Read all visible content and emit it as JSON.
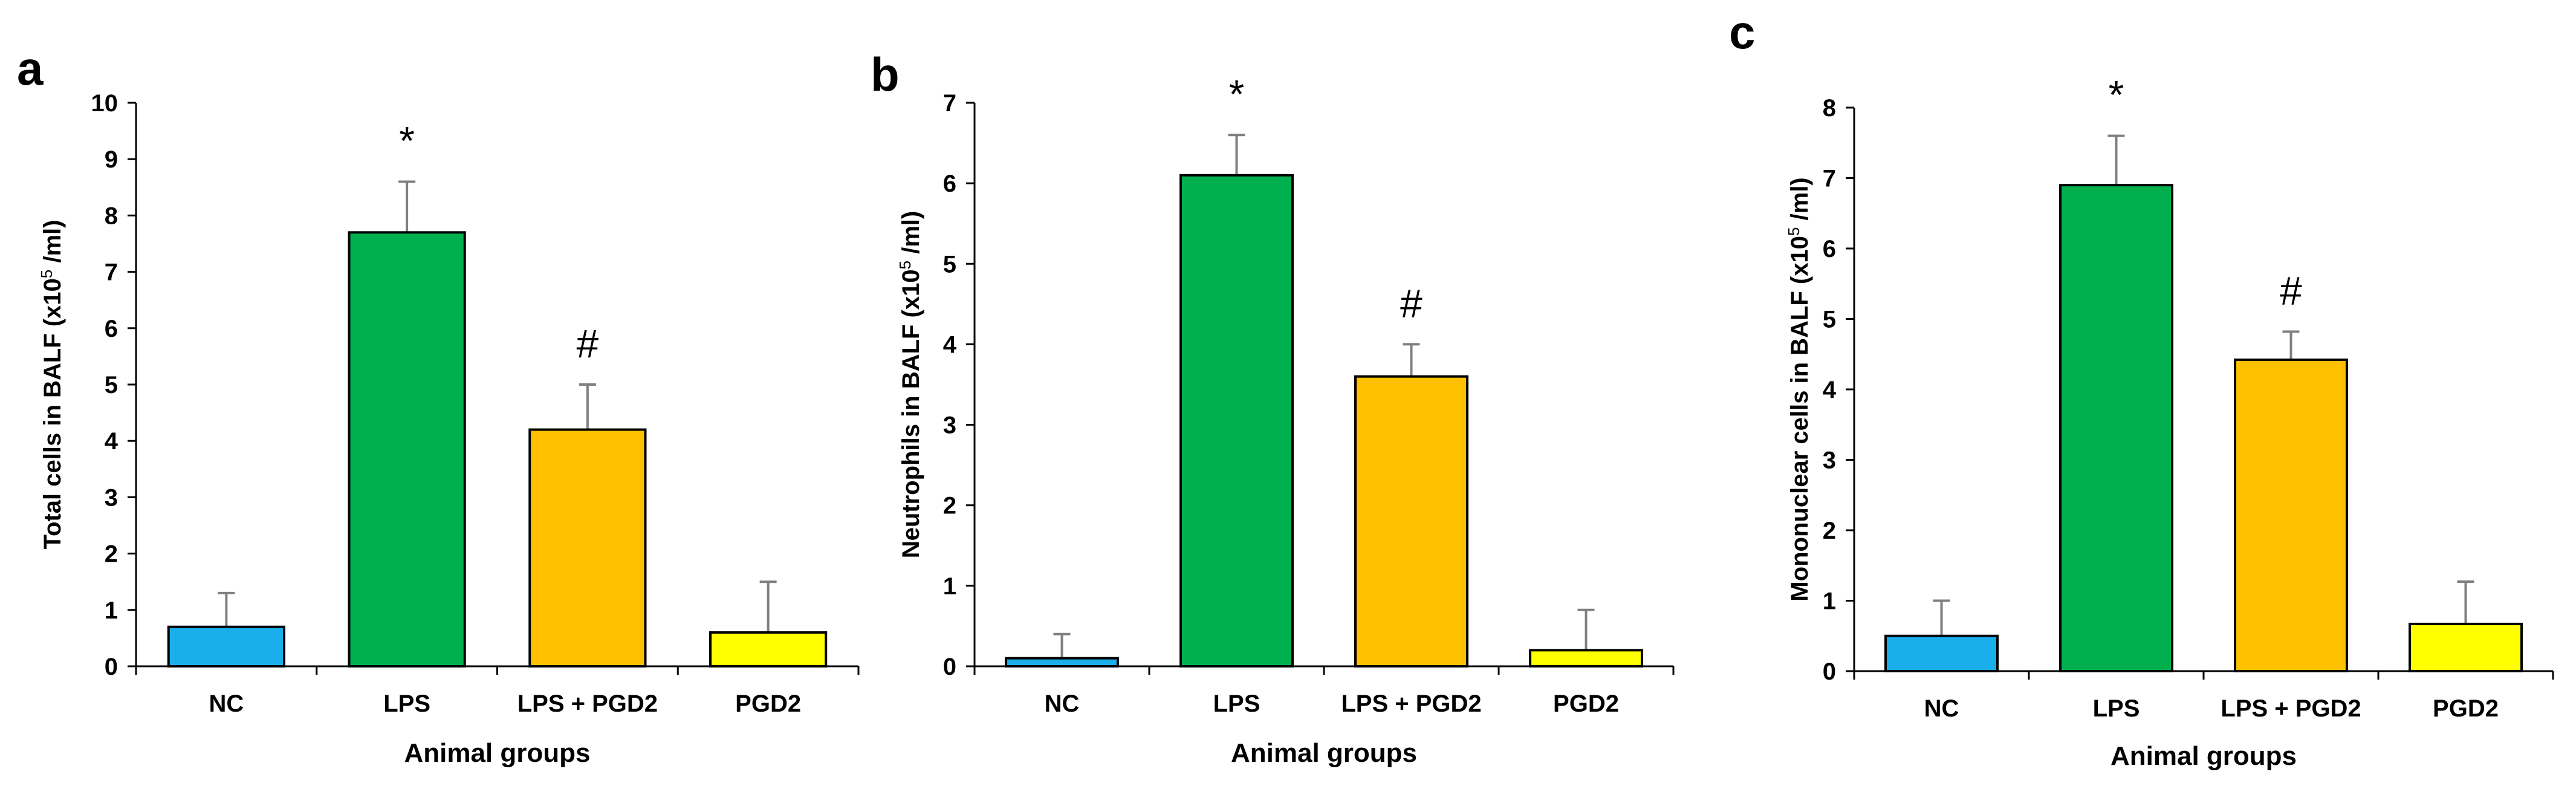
{
  "chart_data": [
    {
      "type": "bar",
      "panel": "a",
      "categories": [
        "NC",
        "LPS",
        "LPS + PGD2",
        "PGD2"
      ],
      "values": [
        0.7,
        7.7,
        4.2,
        0.6
      ],
      "errors": [
        0.6,
        0.9,
        0.8,
        0.9
      ],
      "annotations": [
        "",
        "*",
        "#",
        ""
      ],
      "colors": [
        "#1AAEEB",
        "#00B04F",
        "#FFC000",
        "#FFFF00"
      ],
      "xlabel": "Animal groups",
      "ylabel_pre": "Total cells in BALF (x10",
      "ylabel_sup": "5",
      "ylabel_post": " /ml)",
      "ylim": [
        0,
        10
      ],
      "yticks": [
        0,
        1,
        2,
        3,
        4,
        5,
        6,
        7,
        8,
        9,
        10
      ]
    },
    {
      "type": "bar",
      "panel": "b",
      "categories": [
        "NC",
        "LPS",
        "LPS + PGD2",
        "PGD2"
      ],
      "values": [
        0.1,
        6.1,
        3.6,
        0.2
      ],
      "errors": [
        0.3,
        0.5,
        0.4,
        0.5
      ],
      "annotations": [
        "",
        "*",
        "#",
        ""
      ],
      "colors": [
        "#1AAEEB",
        "#00B04F",
        "#FFC000",
        "#FFFF00"
      ],
      "xlabel": "Animal groups",
      "ylabel_pre": "Neutrophils in BALF (x10",
      "ylabel_sup": "5",
      "ylabel_post": " /ml)",
      "ylim": [
        0,
        7
      ],
      "yticks": [
        0,
        1,
        2,
        3,
        4,
        5,
        6,
        7
      ]
    },
    {
      "type": "bar",
      "panel": "c",
      "categories": [
        "NC",
        "LPS",
        "LPS + PGD2",
        "PGD2"
      ],
      "values": [
        0.5,
        6.9,
        4.42,
        0.67
      ],
      "errors": [
        0.5,
        0.7,
        0.4,
        0.6
      ],
      "annotations": [
        "",
        "*",
        "#",
        ""
      ],
      "colors": [
        "#1AAEEB",
        "#00B04F",
        "#FFC000",
        "#FFFF00"
      ],
      "xlabel": "Animal groups",
      "ylabel_pre": "Mononuclear cells in BALF (x10",
      "ylabel_sup": "5",
      "ylabel_post": " /ml)",
      "ylim": [
        0,
        8
      ],
      "yticks": [
        0,
        1,
        2,
        3,
        4,
        5,
        6,
        7,
        8
      ]
    }
  ]
}
